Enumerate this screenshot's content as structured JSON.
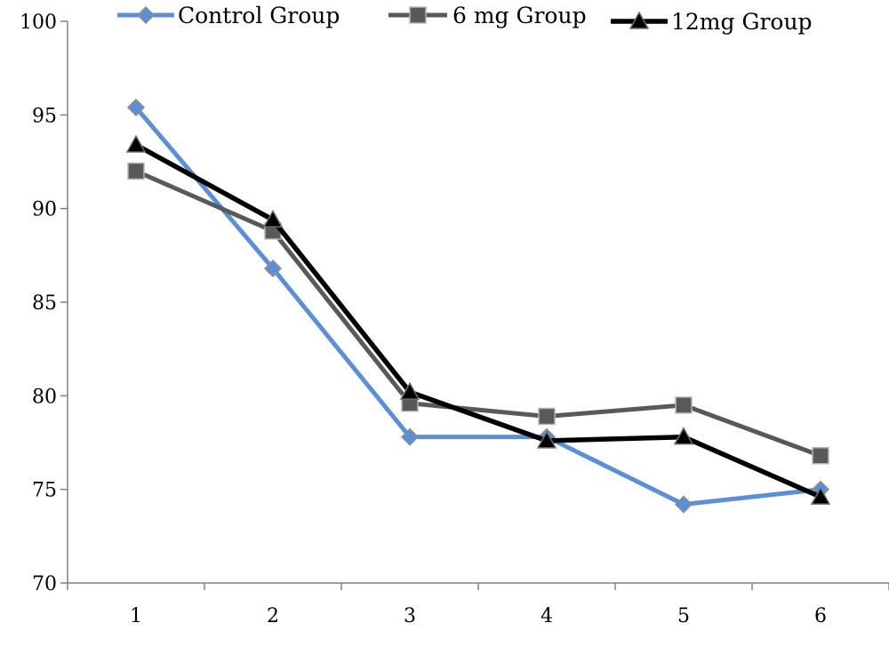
{
  "chart_data": {
    "type": "line",
    "x": [
      1,
      2,
      3,
      4,
      5,
      6
    ],
    "x_tick_labels": [
      "1",
      "2",
      "3",
      "4",
      "5",
      "6"
    ],
    "ylim": [
      70,
      100
    ],
    "y_ticks": [
      70,
      75,
      80,
      85,
      90,
      95,
      100
    ],
    "y_tick_labels": [
      "70",
      "75",
      "80",
      "85",
      "90",
      "95",
      "100"
    ],
    "title": "",
    "xlabel": "",
    "ylabel": "",
    "grid": false,
    "legend_position": "top",
    "series": [
      {
        "name": "Control Group",
        "values": [
          95.4,
          86.8,
          77.8,
          77.8,
          74.2,
          75.0
        ],
        "color": "#5b8fd6",
        "marker": "diamond"
      },
      {
        "name": "6 mg Group",
        "values": [
          92.0,
          88.8,
          79.6,
          78.9,
          79.5,
          76.8
        ],
        "color": "#595959",
        "marker": "square"
      },
      {
        "name": "12mg Group",
        "values": [
          93.4,
          89.4,
          80.2,
          77.6,
          77.8,
          74.6
        ],
        "color": "#000000",
        "marker": "triangle"
      }
    ]
  }
}
